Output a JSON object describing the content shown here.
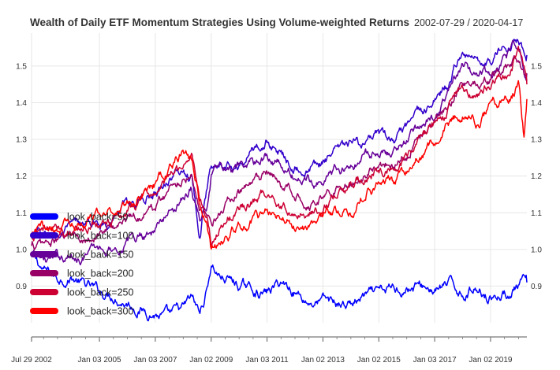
{
  "chart_data": {
    "type": "line",
    "title": "Wealth of Daily ETF Momentum Strategies Using Volume-weighted Returns",
    "date_range": "2002-07-29 / 2020-04-17",
    "xlabel": "",
    "ylabel": "",
    "x_ticks": [
      "Jul 29 2002",
      "Jan 03 2005",
      "Jan 03 2007",
      "Jan 02 2009",
      "Jan 03 2011",
      "Jan 02 2013",
      "Jan 02 2015",
      "Jan 03 2017",
      "Jan 02 2019"
    ],
    "x_tick_years": [
      2002.57,
      2005.0,
      2007.0,
      2009.0,
      2011.0,
      2013.0,
      2015.0,
      2017.0,
      2019.0
    ],
    "x_range": [
      2002.57,
      2020.3
    ],
    "y_ticks": [
      "0.9",
      "1.0",
      "1.1",
      "1.2",
      "1.3",
      "1.4",
      "1.5"
    ],
    "y_tick_values": [
      0.9,
      1.0,
      1.1,
      1.2,
      1.3,
      1.4,
      1.5
    ],
    "ylim": [
      0.8,
      1.59
    ],
    "grid": true,
    "y_axis_labels": "both-sides",
    "legend_position": "left-middle",
    "series": [
      {
        "name": "look_back=50",
        "color": "#0000ff",
        "x": [
          2002.57,
          2003.0,
          2003.5,
          2004.0,
          2004.5,
          2005.0,
          2005.5,
          2006.0,
          2006.5,
          2007.0,
          2007.5,
          2008.0,
          2008.3,
          2008.6,
          2008.85,
          2009.0,
          2009.3,
          2009.6,
          2010.0,
          2010.5,
          2011.0,
          2011.5,
          2012.0,
          2012.5,
          2013.0,
          2013.5,
          2014.0,
          2014.5,
          2015.0,
          2015.5,
          2016.0,
          2016.5,
          2017.0,
          2017.5,
          2018.0,
          2018.5,
          2019.0,
          2019.5,
          2020.0,
          2020.3
        ],
        "values": [
          0.98,
          0.94,
          0.92,
          0.93,
          0.9,
          0.88,
          0.88,
          0.86,
          0.84,
          0.83,
          0.81,
          0.83,
          0.86,
          0.82,
          0.89,
          0.96,
          0.93,
          0.92,
          0.9,
          0.89,
          0.88,
          0.91,
          0.89,
          0.86,
          0.86,
          0.85,
          0.85,
          0.87,
          0.87,
          0.89,
          0.9,
          0.9,
          0.89,
          0.9,
          0.88,
          0.9,
          0.88,
          0.88,
          0.9,
          0.91
        ]
      },
      {
        "name": "look_back=100",
        "color": "#3300cc",
        "x": [
          2002.57,
          2003.0,
          2003.5,
          2004.0,
          2004.5,
          2005.0,
          2005.5,
          2006.0,
          2006.5,
          2007.0,
          2007.5,
          2008.0,
          2008.3,
          2008.6,
          2008.85,
          2009.0,
          2009.3,
          2009.6,
          2010.0,
          2010.5,
          2011.0,
          2011.5,
          2012.0,
          2012.5,
          2013.0,
          2013.5,
          2014.0,
          2014.5,
          2015.0,
          2015.5,
          2016.0,
          2016.5,
          2017.0,
          2017.5,
          2018.0,
          2018.5,
          2019.0,
          2019.5,
          2020.0,
          2020.3
        ],
        "values": [
          1.04,
          1.03,
          1.04,
          1.05,
          1.06,
          1.07,
          1.09,
          1.12,
          1.14,
          1.16,
          1.2,
          1.22,
          1.2,
          1.05,
          1.17,
          1.23,
          1.26,
          1.25,
          1.24,
          1.27,
          1.3,
          1.26,
          1.24,
          1.22,
          1.24,
          1.26,
          1.28,
          1.29,
          1.3,
          1.29,
          1.32,
          1.37,
          1.4,
          1.45,
          1.55,
          1.52,
          1.52,
          1.56,
          1.58,
          1.53
        ]
      },
      {
        "name": "look_back=150",
        "color": "#660099",
        "x": [
          2002.57,
          2003.0,
          2003.5,
          2004.0,
          2004.5,
          2005.0,
          2005.5,
          2006.0,
          2006.5,
          2007.0,
          2007.5,
          2008.0,
          2008.3,
          2008.6,
          2008.85,
          2009.0,
          2009.3,
          2009.6,
          2010.0,
          2010.5,
          2011.0,
          2011.5,
          2012.0,
          2012.5,
          2013.0,
          2013.5,
          2014.0,
          2014.5,
          2015.0,
          2015.5,
          2016.0,
          2016.5,
          2017.0,
          2017.5,
          2018.0,
          2018.5,
          2019.0,
          2019.5,
          2020.0,
          2020.3
        ],
        "values": [
          0.98,
          0.97,
          0.97,
          0.98,
          0.99,
          1.0,
          1.01,
          1.02,
          1.04,
          1.06,
          1.1,
          1.15,
          1.18,
          1.08,
          1.12,
          1.2,
          1.22,
          1.21,
          1.21,
          1.23,
          1.26,
          1.23,
          1.2,
          1.19,
          1.2,
          1.22,
          1.23,
          1.25,
          1.27,
          1.27,
          1.29,
          1.34,
          1.37,
          1.42,
          1.5,
          1.47,
          1.48,
          1.52,
          1.54,
          1.48
        ]
      },
      {
        "name": "look_back=200",
        "color": "#990066",
        "x": [
          2002.57,
          2003.0,
          2003.5,
          2004.0,
          2004.5,
          2005.0,
          2005.5,
          2006.0,
          2006.5,
          2007.0,
          2007.5,
          2008.0,
          2008.3,
          2008.6,
          2008.85,
          2009.0,
          2009.3,
          2009.6,
          2010.0,
          2010.5,
          2011.0,
          2011.5,
          2012.0,
          2012.5,
          2013.0,
          2013.5,
          2014.0,
          2014.5,
          2015.0,
          2015.5,
          2016.0,
          2016.5,
          2017.0,
          2017.5,
          2018.0,
          2018.5,
          2019.0,
          2019.5,
          2020.0,
          2020.3
        ],
        "values": [
          1.01,
          1.01,
          1.02,
          1.03,
          1.04,
          1.05,
          1.06,
          1.08,
          1.1,
          1.12,
          1.16,
          1.2,
          1.22,
          1.12,
          1.1,
          1.06,
          1.1,
          1.13,
          1.15,
          1.17,
          1.2,
          1.17,
          1.15,
          1.14,
          1.15,
          1.17,
          1.18,
          1.21,
          1.24,
          1.24,
          1.27,
          1.32,
          1.35,
          1.4,
          1.46,
          1.44,
          1.46,
          1.49,
          1.51,
          1.46
        ]
      },
      {
        "name": "look_back=250",
        "color": "#cc0033",
        "x": [
          2002.57,
          2003.0,
          2003.5,
          2004.0,
          2004.5,
          2005.0,
          2005.5,
          2006.0,
          2006.5,
          2007.0,
          2007.5,
          2008.0,
          2008.3,
          2008.6,
          2008.85,
          2009.0,
          2009.3,
          2009.6,
          2010.0,
          2010.5,
          2011.0,
          2011.5,
          2012.0,
          2012.5,
          2013.0,
          2013.5,
          2014.0,
          2014.5,
          2015.0,
          2015.5,
          2016.0,
          2016.5,
          2017.0,
          2017.5,
          2018.0,
          2018.5,
          2019.0,
          2019.5,
          2020.0,
          2020.3
        ],
        "values": [
          1.03,
          1.04,
          1.05,
          1.06,
          1.07,
          1.08,
          1.09,
          1.11,
          1.13,
          1.15,
          1.19,
          1.24,
          1.26,
          1.15,
          1.09,
          1.02,
          1.06,
          1.09,
          1.11,
          1.13,
          1.16,
          1.13,
          1.11,
          1.1,
          1.12,
          1.14,
          1.16,
          1.19,
          1.22,
          1.22,
          1.25,
          1.3,
          1.33,
          1.38,
          1.45,
          1.43,
          1.45,
          1.48,
          1.55,
          1.45
        ]
      },
      {
        "name": "look_back=300",
        "color": "#ff0000",
        "x": [
          2002.57,
          2003.0,
          2003.5,
          2004.0,
          2004.5,
          2005.0,
          2005.5,
          2006.0,
          2006.5,
          2007.0,
          2007.5,
          2008.0,
          2008.3,
          2008.6,
          2008.85,
          2009.0,
          2009.3,
          2009.6,
          2010.0,
          2010.5,
          2011.0,
          2011.5,
          2012.0,
          2012.5,
          2013.0,
          2013.5,
          2014.0,
          2014.5,
          2015.0,
          2015.5,
          2016.0,
          2016.5,
          2017.0,
          2017.5,
          2018.0,
          2018.5,
          2019.0,
          2019.5,
          2020.0,
          2020.2,
          2020.3
        ],
        "values": [
          1.04,
          1.05,
          1.06,
          1.07,
          1.08,
          1.09,
          1.11,
          1.13,
          1.16,
          1.18,
          1.22,
          1.27,
          1.24,
          1.13,
          1.06,
          0.99,
          1.02,
          1.04,
          1.06,
          1.08,
          1.1,
          1.08,
          1.07,
          1.06,
          1.08,
          1.1,
          1.12,
          1.15,
          1.18,
          1.18,
          1.2,
          1.25,
          1.28,
          1.33,
          1.38,
          1.35,
          1.38,
          1.42,
          1.45,
          1.3,
          1.41
        ]
      }
    ]
  }
}
